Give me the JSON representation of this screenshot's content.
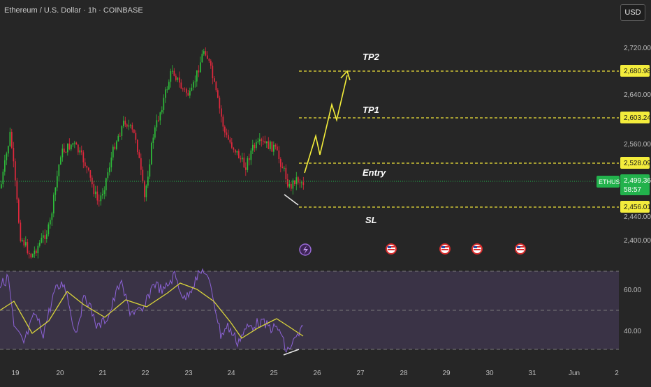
{
  "header": {
    "title": "Ethereum / U.S. Dollar · 1h · COINBASE",
    "currency_button": "USD"
  },
  "price_scale": {
    "labels": [
      "2,720.00",
      "2,640.00",
      "2,560.00",
      "2,440.00",
      "2,400.00"
    ],
    "badges": {
      "tp2": "2,680.98",
      "tp1": "2,603.24",
      "entry": "2,528.09",
      "sl": "2,456.01"
    },
    "current": {
      "symbol": "ETHUSD",
      "price": "2,499.36",
      "countdown": "58:57"
    }
  },
  "rsi_scale": {
    "labels": [
      "60.00",
      "40.00"
    ]
  },
  "time_axis": {
    "labels": [
      "19",
      "20",
      "21",
      "22",
      "23",
      "24",
      "25",
      "26",
      "27",
      "28",
      "29",
      "30",
      "31",
      "Jun",
      "2"
    ]
  },
  "annotations": {
    "tp2": "TP2",
    "tp1": "TP1",
    "entry": "Entry",
    "sl": "SL"
  },
  "colors": {
    "background": "#262626",
    "up_candle": "#2ebd3a",
    "down_candle": "#e0283d",
    "level_lines": "#f0e43a",
    "projection_arrow": "#f5ef3a",
    "rsi_line": "#8c62d6",
    "rsi_ma": "#d9d43a",
    "rsi_band": "#3a3346",
    "current_price_badge": "#22b24c"
  },
  "icons": {
    "event_markers": [
      "lightning-event-icon",
      "us-flag-event-icon",
      "us-flag-event-icon",
      "us-flag-event-icon",
      "us-flag-event-icon"
    ]
  }
}
